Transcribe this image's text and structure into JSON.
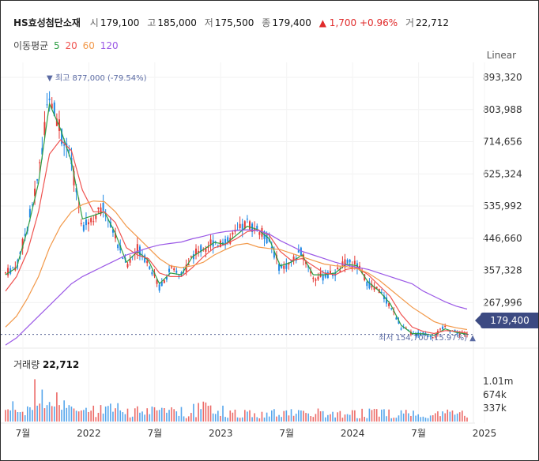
{
  "header": {
    "name": "HS효성첨단소재",
    "open_label": "시",
    "open": "179,100",
    "high_label": "고",
    "high": "185,000",
    "low_label": "저",
    "low": "175,500",
    "close_label": "종",
    "close": "179,400",
    "change": "▲ 1,700 +0.96%",
    "volume_label": "거",
    "volume": "22,712"
  },
  "ma_legend": {
    "title": "이동평균",
    "items": [
      {
        "label": "5",
        "color": "#2e9e44"
      },
      {
        "label": "20",
        "color": "#ef5350"
      },
      {
        "label": "60",
        "color": "#f2994a"
      },
      {
        "label": "120",
        "color": "#9b59e6"
      }
    ]
  },
  "scale_label": "Linear",
  "current_price_tag": "179,400",
  "annotations": {
    "high": "▼ 최고 877,000 (-79.54%)",
    "low": "최저 154,700 (15.97%) ▲"
  },
  "volume_panel": {
    "title": "거래량",
    "value": "22,712"
  },
  "colors": {
    "up": "#e53935",
    "down": "#1e88e5",
    "tag": "#3c4a82",
    "annotation": "#5a6aa3"
  },
  "chart_data": {
    "type": "line",
    "y_ticks": [
      "893,320",
      "803,988",
      "714,656",
      "625,324",
      "535,992",
      "446,660",
      "357,328",
      "267,996"
    ],
    "y_tick_values": [
      893320,
      803988,
      714656,
      625324,
      535992,
      446660,
      357328,
      267996
    ],
    "ylim": [
      148000,
      935000
    ],
    "x_ticks": [
      "7월",
      "2022",
      "7월",
      "2023",
      "7월",
      "2024",
      "7월",
      "2025"
    ],
    "x_tick_months": [
      0,
      6,
      12,
      18,
      24,
      30,
      36,
      42
    ],
    "x_start": "2021-06",
    "x_end": "2025-04",
    "volume_ticks": [
      "1.01m",
      "674k",
      "337k"
    ],
    "volume_tick_values": [
      1010000,
      674000,
      337000
    ],
    "price_path": [
      [
        0,
        350000
      ],
      [
        1,
        370000
      ],
      [
        2,
        480000
      ],
      [
        3,
        620000
      ],
      [
        4,
        860000
      ],
      [
        5,
        740000
      ],
      [
        6,
        650000
      ],
      [
        7,
        480000
      ],
      [
        8,
        510000
      ],
      [
        9,
        530000
      ],
      [
        10,
        450000
      ],
      [
        11,
        370000
      ],
      [
        12,
        420000
      ],
      [
        13,
        380000
      ],
      [
        14,
        310000
      ],
      [
        15,
        360000
      ],
      [
        16,
        340000
      ],
      [
        17,
        400000
      ],
      [
        18,
        420000
      ],
      [
        19,
        440000
      ],
      [
        20,
        430000
      ],
      [
        21,
        460000
      ],
      [
        22,
        490000
      ],
      [
        23,
        470000
      ],
      [
        24,
        440000
      ],
      [
        25,
        360000
      ],
      [
        26,
        380000
      ],
      [
        27,
        410000
      ],
      [
        28,
        340000
      ],
      [
        29,
        340000
      ],
      [
        30,
        350000
      ],
      [
        31,
        380000
      ],
      [
        32,
        370000
      ],
      [
        33,
        320000
      ],
      [
        34,
        300000
      ],
      [
        35,
        260000
      ],
      [
        36,
        200000
      ],
      [
        37,
        180000
      ],
      [
        38,
        180000
      ],
      [
        39,
        175000
      ],
      [
        40,
        200000
      ],
      [
        41,
        185000
      ],
      [
        42,
        179400
      ]
    ],
    "series": [
      {
        "name": "5",
        "color": "#2e9e44",
        "values": [
          [
            0,
            345000
          ],
          [
            1,
            365000
          ],
          [
            2,
            470000
          ],
          [
            3,
            600000
          ],
          [
            4,
            820000
          ],
          [
            5,
            750000
          ],
          [
            6,
            660000
          ],
          [
            7,
            500000
          ],
          [
            8,
            510000
          ],
          [
            9,
            520000
          ],
          [
            10,
            460000
          ],
          [
            11,
            380000
          ],
          [
            12,
            410000
          ],
          [
            13,
            385000
          ],
          [
            14,
            320000
          ],
          [
            15,
            350000
          ],
          [
            16,
            345000
          ],
          [
            17,
            395000
          ],
          [
            18,
            415000
          ],
          [
            19,
            435000
          ],
          [
            20,
            430000
          ],
          [
            21,
            455000
          ],
          [
            22,
            480000
          ],
          [
            23,
            470000
          ],
          [
            24,
            445000
          ],
          [
            25,
            370000
          ],
          [
            26,
            380000
          ],
          [
            27,
            400000
          ],
          [
            28,
            345000
          ],
          [
            29,
            345000
          ],
          [
            30,
            350000
          ],
          [
            31,
            375000
          ],
          [
            32,
            370000
          ],
          [
            33,
            325000
          ],
          [
            34,
            300000
          ],
          [
            35,
            265000
          ],
          [
            36,
            205000
          ],
          [
            37,
            182000
          ],
          [
            38,
            181000
          ],
          [
            39,
            177000
          ],
          [
            40,
            195000
          ],
          [
            41,
            185000
          ],
          [
            42,
            180000
          ]
        ]
      },
      {
        "name": "20",
        "color": "#ef5350",
        "values": [
          [
            0,
            300000
          ],
          [
            1,
            340000
          ],
          [
            2,
            410000
          ],
          [
            3,
            520000
          ],
          [
            4,
            680000
          ],
          [
            5,
            720000
          ],
          [
            6,
            690000
          ],
          [
            7,
            580000
          ],
          [
            8,
            520000
          ],
          [
            9,
            520000
          ],
          [
            10,
            490000
          ],
          [
            11,
            420000
          ],
          [
            12,
            400000
          ],
          [
            13,
            390000
          ],
          [
            14,
            350000
          ],
          [
            15,
            340000
          ],
          [
            16,
            340000
          ],
          [
            17,
            365000
          ],
          [
            18,
            395000
          ],
          [
            19,
            420000
          ],
          [
            20,
            430000
          ],
          [
            21,
            445000
          ],
          [
            22,
            465000
          ],
          [
            23,
            470000
          ],
          [
            24,
            455000
          ],
          [
            25,
            410000
          ],
          [
            26,
            385000
          ],
          [
            27,
            390000
          ],
          [
            28,
            370000
          ],
          [
            29,
            350000
          ],
          [
            30,
            345000
          ],
          [
            31,
            360000
          ],
          [
            32,
            365000
          ],
          [
            33,
            345000
          ],
          [
            34,
            315000
          ],
          [
            35,
            285000
          ],
          [
            36,
            235000
          ],
          [
            37,
            200000
          ],
          [
            38,
            188000
          ],
          [
            39,
            182000
          ],
          [
            40,
            190000
          ],
          [
            41,
            188000
          ],
          [
            42,
            183000
          ]
        ]
      },
      {
        "name": "60",
        "color": "#f2994a",
        "values": [
          [
            0,
            200000
          ],
          [
            1,
            230000
          ],
          [
            2,
            280000
          ],
          [
            3,
            340000
          ],
          [
            4,
            420000
          ],
          [
            5,
            480000
          ],
          [
            6,
            520000
          ],
          [
            7,
            540000
          ],
          [
            8,
            550000
          ],
          [
            9,
            548000
          ],
          [
            10,
            520000
          ],
          [
            11,
            480000
          ],
          [
            12,
            450000
          ],
          [
            13,
            420000
          ],
          [
            14,
            390000
          ],
          [
            15,
            370000
          ],
          [
            16,
            365000
          ],
          [
            17,
            370000
          ],
          [
            18,
            380000
          ],
          [
            19,
            400000
          ],
          [
            20,
            415000
          ],
          [
            21,
            428000
          ],
          [
            22,
            432000
          ],
          [
            23,
            422000
          ],
          [
            24,
            418000
          ],
          [
            25,
            415000
          ],
          [
            26,
            405000
          ],
          [
            27,
            395000
          ],
          [
            28,
            385000
          ],
          [
            29,
            375000
          ],
          [
            30,
            370000
          ],
          [
            31,
            368000
          ],
          [
            32,
            362000
          ],
          [
            33,
            350000
          ],
          [
            34,
            330000
          ],
          [
            35,
            305000
          ],
          [
            36,
            280000
          ],
          [
            37,
            255000
          ],
          [
            38,
            235000
          ],
          [
            39,
            215000
          ],
          [
            40,
            205000
          ],
          [
            41,
            198000
          ],
          [
            42,
            193000
          ]
        ]
      },
      {
        "name": "120",
        "color": "#9b59e6",
        "values": [
          [
            0,
            150000
          ],
          [
            1,
            170000
          ],
          [
            2,
            200000
          ],
          [
            3,
            230000
          ],
          [
            4,
            260000
          ],
          [
            5,
            290000
          ],
          [
            6,
            320000
          ],
          [
            7,
            340000
          ],
          [
            8,
            355000
          ],
          [
            9,
            370000
          ],
          [
            10,
            385000
          ],
          [
            11,
            400000
          ],
          [
            12,
            410000
          ],
          [
            13,
            420000
          ],
          [
            14,
            428000
          ],
          [
            15,
            432000
          ],
          [
            16,
            436000
          ],
          [
            17,
            445000
          ],
          [
            18,
            452000
          ],
          [
            19,
            460000
          ],
          [
            20,
            465000
          ],
          [
            21,
            468000
          ],
          [
            22,
            470000
          ],
          [
            23,
            468000
          ],
          [
            24,
            458000
          ],
          [
            25,
            440000
          ],
          [
            26,
            425000
          ],
          [
            27,
            410000
          ],
          [
            28,
            400000
          ],
          [
            29,
            390000
          ],
          [
            30,
            380000
          ],
          [
            31,
            372000
          ],
          [
            32,
            366000
          ],
          [
            33,
            360000
          ],
          [
            34,
            350000
          ],
          [
            35,
            340000
          ],
          [
            36,
            330000
          ],
          [
            37,
            320000
          ],
          [
            38,
            300000
          ],
          [
            39,
            285000
          ],
          [
            40,
            270000
          ],
          [
            41,
            258000
          ],
          [
            42,
            250000
          ]
        ]
      }
    ]
  }
}
